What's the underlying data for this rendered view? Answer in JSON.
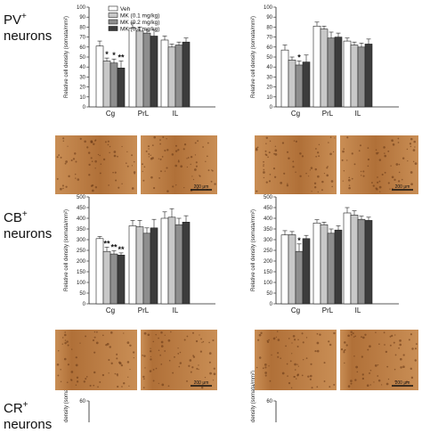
{
  "row_labels": [
    {
      "name": "PV",
      "sup": "+",
      "line2": "neurons"
    },
    {
      "name": "CB",
      "sup": "+",
      "line2": "neurons"
    },
    {
      "name": "CR",
      "sup": "+",
      "line2": "neurons"
    }
  ],
  "legend": [
    "Veh",
    "MK (0.1 mg/kg)",
    "MK (0.2 mg/kg)",
    "MK (0.4 mg/kg)"
  ],
  "colors": {
    "Veh": "#ffffff",
    "MK01": "#c8c8c8",
    "MK02": "#8e8e8e",
    "MK04": "#3c3c3c",
    "tissue_light": "#c98e55",
    "tissue_dark": "#b07038"
  },
  "scale_bar_text": "200 μm",
  "chart_data": [
    {
      "type": "bar",
      "id": "pv-left",
      "ylabel": "Relative cell density (somata/mm²)",
      "categories": [
        "Cg",
        "PrL",
        "IL"
      ],
      "ylim": [
        0,
        100
      ],
      "yticks": [
        "0",
        "10",
        "20",
        "30",
        "40",
        "50",
        "60",
        "70",
        "80",
        "90",
        "100"
      ],
      "series": [
        {
          "name": "Veh",
          "values": [
            61,
            79,
            67
          ],
          "err": [
            5,
            5,
            4
          ]
        },
        {
          "name": "MK (0.1 mg/kg)",
          "values": [
            46,
            76,
            60
          ],
          "err": [
            3,
            4,
            3
          ]
        },
        {
          "name": "MK (0.2 mg/kg)",
          "values": [
            44,
            74,
            62
          ],
          "err": [
            4,
            3,
            3
          ]
        },
        {
          "name": "MK (0.4 mg/kg)",
          "values": [
            39,
            71,
            65
          ],
          "err": [
            7,
            6,
            4
          ]
        }
      ],
      "stars": [
        [
          "",
          "*",
          "*",
          "**"
        ],
        [
          "",
          "",
          "",
          ""
        ],
        [
          "",
          "",
          "",
          ""
        ]
      ]
    },
    {
      "type": "bar",
      "id": "pv-right",
      "ylabel": "Relative cell density (somata/mm²)",
      "categories": [
        "Cg",
        "PrL",
        "IL"
      ],
      "ylim": [
        0,
        100
      ],
      "yticks": [
        "0",
        "10",
        "20",
        "30",
        "40",
        "50",
        "60",
        "70",
        "80",
        "90",
        "100"
      ],
      "series": [
        {
          "name": "Veh",
          "values": [
            57,
            81,
            66
          ],
          "err": [
            5,
            4,
            3
          ]
        },
        {
          "name": "MK (0.1 mg/kg)",
          "values": [
            47,
            78,
            62
          ],
          "err": [
            3,
            3,
            3
          ]
        },
        {
          "name": "MK (0.2 mg/kg)",
          "values": [
            42,
            69,
            60
          ],
          "err": [
            4,
            6,
            4
          ]
        },
        {
          "name": "MK (0.4 mg/kg)",
          "values": [
            45,
            70,
            63
          ],
          "err": [
            7,
            4,
            5
          ]
        }
      ],
      "stars": [
        [
          "",
          "",
          "*",
          ""
        ],
        [
          "",
          "",
          "",
          ""
        ],
        [
          "",
          "",
          "",
          ""
        ]
      ]
    },
    {
      "type": "bar",
      "id": "cb-left",
      "ylabel": "Relative cell density (somata/mm²)",
      "categories": [
        "Cg",
        "PrL",
        "IL"
      ],
      "ylim": [
        0,
        500
      ],
      "yticks": [
        "0",
        "50",
        "100",
        "150",
        "200",
        "250",
        "300",
        "350",
        "400",
        "450",
        "500"
      ],
      "series": [
        {
          "name": "Veh",
          "values": [
            305,
            365,
            400
          ],
          "err": [
            10,
            25,
            30
          ]
        },
        {
          "name": "MK (0.1 mg/kg)",
          "values": [
            245,
            360,
            405
          ],
          "err": [
            20,
            30,
            40
          ]
        },
        {
          "name": "MK (0.2 mg/kg)",
          "values": [
            233,
            330,
            370
          ],
          "err": [
            15,
            25,
            30
          ]
        },
        {
          "name": "MK (0.4 mg/kg)",
          "values": [
            228,
            355,
            382
          ],
          "err": [
            10,
            40,
            30
          ]
        }
      ],
      "stars": [
        [
          "",
          "**",
          "**",
          "**"
        ],
        [
          "",
          "",
          "",
          ""
        ],
        [
          "",
          "",
          "",
          ""
        ]
      ]
    },
    {
      "type": "bar",
      "id": "cb-right",
      "ylabel": "Relative cell density (somata/mm²)",
      "categories": [
        "Cg",
        "PrL",
        "IL"
      ],
      "ylim": [
        0,
        500
      ],
      "yticks": [
        "0",
        "50",
        "100",
        "150",
        "200",
        "250",
        "300",
        "350",
        "400",
        "450",
        "500"
      ],
      "series": [
        {
          "name": "Veh",
          "values": [
            322,
            378,
            425
          ],
          "err": [
            20,
            15,
            25
          ]
        },
        {
          "name": "MK (0.1 mg/kg)",
          "values": [
            323,
            370,
            415
          ],
          "err": [
            15,
            12,
            20
          ]
        },
        {
          "name": "MK (0.2 mg/kg)",
          "values": [
            245,
            330,
            395
          ],
          "err": [
            35,
            20,
            15
          ]
        },
        {
          "name": "MK (0.4 mg/kg)",
          "values": [
            305,
            345,
            390
          ],
          "err": [
            15,
            20,
            15
          ]
        }
      ],
      "stars": [
        [
          "",
          "",
          "*",
          ""
        ],
        [
          "",
          "",
          "",
          ""
        ],
        [
          "",
          "",
          "",
          ""
        ]
      ]
    },
    {
      "type": "bar",
      "id": "cr-left",
      "ylabel": "Relative cell density (somata/mm²)",
      "categories": [],
      "ylim": [
        0,
        60
      ],
      "yticks": [
        "60"
      ],
      "series": [],
      "stars": []
    },
    {
      "type": "bar",
      "id": "cr-right",
      "ylabel": "Relative cell density (somata/mm²)",
      "categories": [],
      "ylim": [
        0,
        60
      ],
      "yticks": [
        "60"
      ],
      "series": [],
      "stars": []
    }
  ]
}
